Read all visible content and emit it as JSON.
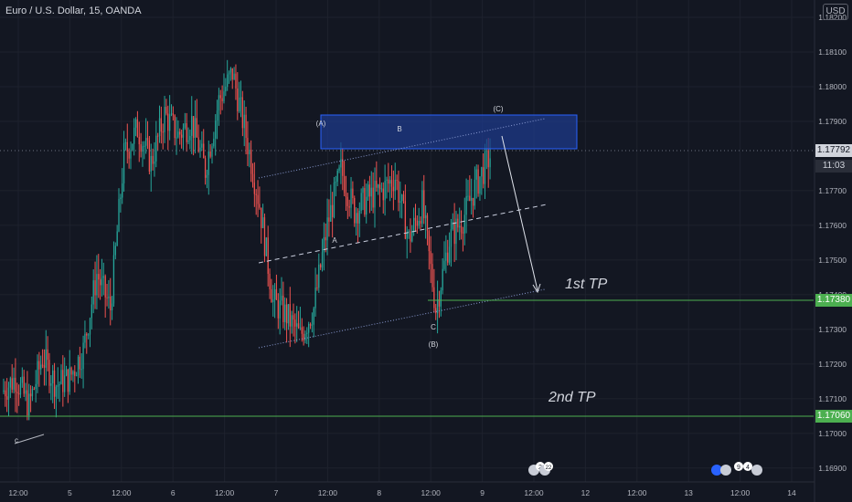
{
  "header": {
    "title": "Euro / U.S. Dollar, 15, OANDA"
  },
  "currency_button": "USD",
  "colors": {
    "background": "#131722",
    "up": "#26a69a",
    "down": "#ef5350",
    "grid": "#1e222d",
    "axis_text": "#b2b5be",
    "box_fill": "#1e3a8a",
    "box_stroke": "#2962ff",
    "tp_line": "#4caf50"
  },
  "price_tags": {
    "current_price": "1.17792",
    "countdown": "11:03",
    "tp1_price": "1.17380",
    "tp2_price": "1.17060"
  },
  "annotations": {
    "tp1": "1st TP",
    "tp2": "2nd TP",
    "wave_A_paren": "(A)",
    "wave_B": "B",
    "wave_C_paren": "(C)",
    "wave_A": "A",
    "wave_C": "C",
    "wave_B_paren": "(B)",
    "wave_c_low": "c"
  },
  "event_badges": [
    "2",
    "22",
    "9",
    "4"
  ],
  "chart_data": {
    "type": "candlestick",
    "title": "Euro / U.S. Dollar, 15, OANDA",
    "ylim": [
      1.1686,
      1.1825
    ],
    "y_ticks": [
      "1.18200",
      "1.18100",
      "1.18000",
      "1.17900",
      "1.17700",
      "1.17600",
      "1.17500",
      "1.17400",
      "1.17300",
      "1.17200",
      "1.17100",
      "1.17000",
      "1.16900"
    ],
    "x_ticks": [
      "12:00",
      "5",
      "12:00",
      "6",
      "12:00",
      "7",
      "12:00",
      "8",
      "12:00",
      "9",
      "12:00",
      "12",
      "12:00",
      "13",
      "12:00",
      "14"
    ],
    "grid": true,
    "legend": "none",
    "price_path": [
      1.1712,
      1.1716,
      1.1708,
      1.1722,
      1.1714,
      1.1716,
      1.1724,
      1.1746,
      1.1736,
      1.178,
      1.1788,
      1.1778,
      1.1792,
      1.1786,
      1.179,
      1.1776,
      1.1796,
      1.1804,
      1.1786,
      1.1766,
      1.1738,
      1.1734,
      1.1728,
      1.1736,
      1.176,
      1.1776,
      1.1764,
      1.1768,
      1.177,
      1.1774,
      1.1756,
      1.1766,
      1.1736,
      1.1756,
      1.1762,
      1.1772,
      1.178
    ]
  }
}
